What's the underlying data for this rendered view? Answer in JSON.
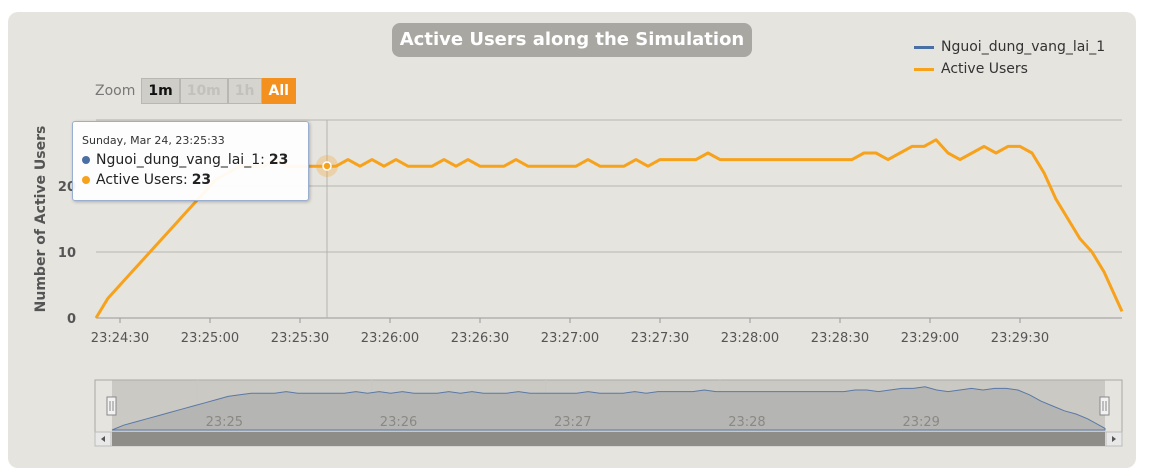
{
  "chart_data": {
    "type": "line",
    "title": "Active Users along the Simulation",
    "ylabel": "Number of Active Users",
    "xlabel": "",
    "ylim": [
      0,
      30
    ],
    "y_ticks": [
      "0",
      "10",
      "20"
    ],
    "x_tick_labels": [
      "23:24:30",
      "23:25:00",
      "23:25:30",
      "23:26:00",
      "23:26:30",
      "23:27:00",
      "23:27:30",
      "23:28:00",
      "23:28:30",
      "23:29:00",
      "23:29:30"
    ],
    "x_tick_seconds": [
      30,
      60,
      90,
      120,
      150,
      180,
      210,
      240,
      270,
      300,
      330
    ],
    "x_range_seconds": [
      22,
      364
    ],
    "x_origin_label": "23:24:00",
    "legend_position": "top-right",
    "series": [
      {
        "name": "Nguoi_dung_vang_lai_1",
        "color": "#4a6fa5"
      },
      {
        "name": "Active Users",
        "color": "#f7a21b"
      }
    ],
    "points_seconds": [
      22,
      26,
      30,
      34,
      38,
      42,
      46,
      50,
      54,
      58,
      62,
      66,
      70,
      74,
      78,
      82,
      86,
      90,
      94,
      98,
      102,
      106,
      110,
      114,
      118,
      122,
      126,
      130,
      134,
      138,
      142,
      146,
      150,
      154,
      158,
      162,
      166,
      170,
      174,
      178,
      182,
      186,
      190,
      194,
      198,
      202,
      206,
      210,
      214,
      218,
      222,
      226,
      230,
      234,
      238,
      242,
      246,
      250,
      254,
      258,
      262,
      266,
      270,
      274,
      278,
      282,
      286,
      290,
      294,
      298,
      302,
      306,
      310,
      314,
      318,
      322,
      326,
      330,
      334,
      338,
      342,
      346,
      350,
      354,
      358,
      362,
      364
    ],
    "values": [
      0,
      3,
      5,
      7,
      9,
      11,
      13,
      15,
      17,
      19,
      21,
      22,
      23,
      23,
      23,
      24,
      23,
      23,
      23,
      23,
      23,
      24,
      23,
      24,
      23,
      24,
      23,
      23,
      23,
      24,
      23,
      24,
      23,
      23,
      23,
      24,
      23,
      23,
      23,
      23,
      23,
      24,
      23,
      23,
      23,
      24,
      23,
      24,
      24,
      24,
      24,
      25,
      24,
      24,
      24,
      24,
      24,
      24,
      24,
      24,
      24,
      24,
      24,
      24,
      25,
      25,
      24,
      25,
      26,
      26,
      27,
      25,
      24,
      25,
      26,
      25,
      26,
      26,
      25,
      22,
      18,
      15,
      12,
      10,
      7,
      3,
      1
    ],
    "navigator": {
      "tick_labels": [
        "23:25",
        "23:26",
        "23:27",
        "23:28",
        "23:29"
      ],
      "tick_seconds": [
        60,
        120,
        180,
        240,
        300
      ]
    }
  },
  "zoom": {
    "label": "Zoom",
    "buttons": [
      {
        "label": "1m",
        "state": "normal"
      },
      {
        "label": "10m",
        "state": "disabled"
      },
      {
        "label": "1h",
        "state": "disabled"
      },
      {
        "label": "All",
        "state": "active"
      }
    ]
  },
  "tooltip": {
    "date": "Sunday, Mar 24, 23:25:33",
    "rows": [
      {
        "name": "Nguoi_dung_vang_lai_1:",
        "value": "23",
        "color": "#4a6fa5"
      },
      {
        "name": "Active Users:",
        "value": "23",
        "color": "#f7a21b"
      }
    ]
  }
}
